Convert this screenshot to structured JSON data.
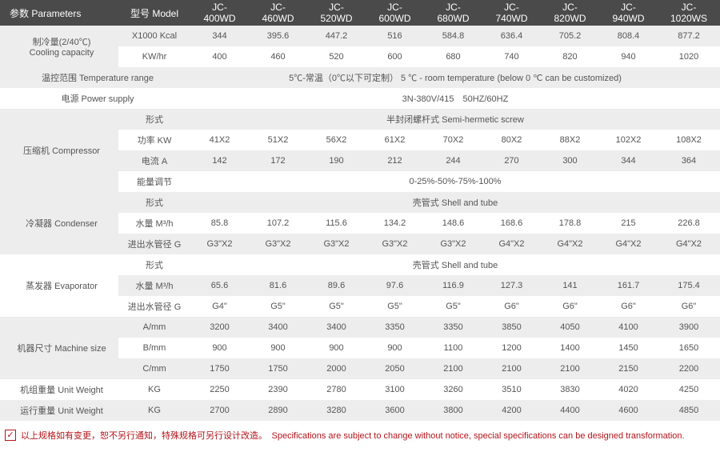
{
  "colors": {
    "header_bg": "#4a4a4a",
    "header_text": "#ffffff",
    "row_even_bg": "#ededed",
    "row_odd_bg": "#ffffff",
    "body_text": "#555555",
    "footer_text": "#b3141a"
  },
  "layout": {
    "col_widths": [
      "148px",
      "90px",
      "73px",
      "73px",
      "73px",
      "73px",
      "73px",
      "73px",
      "73px",
      "73px",
      "78px"
    ]
  },
  "header": {
    "param_label": "参数 Parameters",
    "model_label": "型号 Model",
    "models": [
      "JC-400WD",
      "JC-460WD",
      "JC-520WD",
      "JC-600WD",
      "JC-680WD",
      "JC-740WD",
      "JC-820WD",
      "JC-940WD",
      "JC-1020WS"
    ]
  },
  "sections": [
    {
      "label": "制冷量(2/40℃)\nCooling capacity",
      "rows": [
        {
          "sub": "X1000 Kcal",
          "vals": [
            "344",
            "395.6",
            "447.2",
            "516",
            "584.8",
            "636.4",
            "705.2",
            "808.4",
            "877.2"
          ],
          "stripe": "even"
        },
        {
          "sub": "KW/hr",
          "vals": [
            "400",
            "460",
            "520",
            "600",
            "680",
            "740",
            "820",
            "940",
            "1020"
          ],
          "stripe": "odd"
        }
      ]
    },
    {
      "label": "温控范围 Temperature range",
      "spanSub": true,
      "rows": [
        {
          "merged": "5℃-常温（0℃以下可定制） 5 ℃ - room temperature (below 0 ℃ can be customized)",
          "stripe": "even"
        }
      ]
    },
    {
      "label": "电源 Power supply",
      "spanSub": true,
      "rows": [
        {
          "merged": "3N-380V/415　50HZ/60HZ",
          "stripe": "odd"
        }
      ]
    },
    {
      "label": "压缩机 Compressor",
      "rows": [
        {
          "sub": "形式",
          "merged": "半封闭螺杆式 Semi-hermetic screw",
          "stripe": "even"
        },
        {
          "sub": "功率 KW",
          "vals": [
            "41X2",
            "51X2",
            "56X2",
            "61X2",
            "70X2",
            "80X2",
            "88X2",
            "102X2",
            "108X2"
          ],
          "stripe": "odd"
        },
        {
          "sub": "电流 A",
          "vals": [
            "142",
            "172",
            "190",
            "212",
            "244",
            "270",
            "300",
            "344",
            "364"
          ],
          "stripe": "even"
        },
        {
          "sub": "能量调节",
          "merged": "0-25%-50%-75%-100%",
          "stripe": "odd"
        }
      ]
    },
    {
      "label": "冷凝器 Condenser",
      "rows": [
        {
          "sub": "形式",
          "merged": "壳管式 Shell and tube",
          "stripe": "even"
        },
        {
          "sub": "水量 M³/h",
          "vals": [
            "85.8",
            "107.2",
            "115.6",
            "134.2",
            "148.6",
            "168.6",
            "178.8",
            "215",
            "226.8"
          ],
          "stripe": "odd"
        },
        {
          "sub": "进出水管径 G",
          "vals": [
            "G3\"X2",
            "G3\"X2",
            "G3\"X2",
            "G3\"X2",
            "G3\"X2",
            "G4\"X2",
            "G4\"X2",
            "G4\"X2",
            "G4\"X2"
          ],
          "stripe": "even"
        }
      ]
    },
    {
      "label": "蒸发器 Evaporator",
      "rows": [
        {
          "sub": "形式",
          "merged": "壳管式 Shell and tube",
          "stripe": "odd"
        },
        {
          "sub": "水量 M³/h",
          "vals": [
            "65.6",
            "81.6",
            "89.6",
            "97.6",
            "116.9",
            "127.3",
            "141",
            "161.7",
            "175.4"
          ],
          "stripe": "even"
        },
        {
          "sub": "进出水管径 G",
          "vals": [
            "G4\"",
            "G5\"",
            "G5\"",
            "G5\"",
            "G5\"",
            "G6\"",
            "G6\"",
            "G6\"",
            "G6\""
          ],
          "stripe": "odd"
        }
      ]
    },
    {
      "label": "机器尺寸 Machine size",
      "rows": [
        {
          "sub": "A/mm",
          "vals": [
            "3200",
            "3400",
            "3400",
            "3350",
            "3350",
            "3850",
            "4050",
            "4100",
            "3900"
          ],
          "stripe": "even"
        },
        {
          "sub": "B/mm",
          "vals": [
            "900",
            "900",
            "900",
            "900",
            "1100",
            "1200",
            "1400",
            "1450",
            "1650"
          ],
          "stripe": "odd"
        },
        {
          "sub": "C/mm",
          "vals": [
            "1750",
            "1750",
            "2000",
            "2050",
            "2100",
            "2100",
            "2100",
            "2150",
            "2200"
          ],
          "stripe": "even"
        }
      ]
    },
    {
      "label": "机组重量 Unit Weight",
      "rows": [
        {
          "sub": "KG",
          "vals": [
            "2250",
            "2390",
            "2780",
            "3100",
            "3260",
            "3510",
            "3830",
            "4020",
            "4250"
          ],
          "stripe": "odd"
        }
      ]
    },
    {
      "label": "运行重量 Unit Weight",
      "rows": [
        {
          "sub": "KG",
          "vals": [
            "2700",
            "2890",
            "3280",
            "3600",
            "3800",
            "4200",
            "4400",
            "4600",
            "4850"
          ],
          "stripe": "even"
        }
      ]
    }
  ],
  "footer": {
    "check": "✓",
    "text": "以上规格如有变更，恕不另行通知，特殊规格可另行设计改造。　Specifications are subject to change without notice, special specifications can be designed transformation."
  }
}
